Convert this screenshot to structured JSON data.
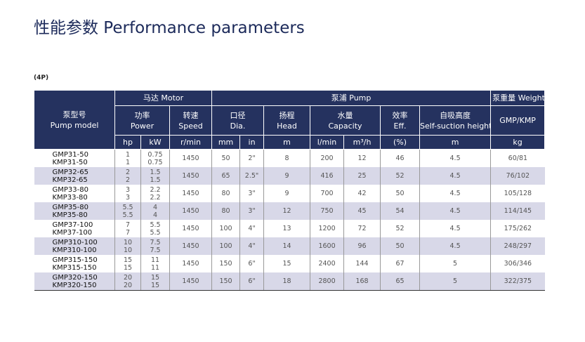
{
  "title": "性能参数 Performance parameters",
  "note": "(4P)",
  "header": {
    "model": [
      "泵型号",
      "Pump model"
    ],
    "motor": "马达 Motor",
    "pump": "泵浦 Pump",
    "weight": "泵重量 Weight",
    "groups": [
      [
        "功率",
        "Power"
      ],
      [
        "转速",
        "Speed"
      ],
      [
        "口径",
        "Dia."
      ],
      [
        "扬程",
        "Head"
      ],
      [
        "水量",
        "Capacity"
      ],
      [
        "效率",
        "Eff."
      ],
      [
        "自吸高度",
        "Self-suction height"
      ],
      [
        "GMP/KMP"
      ]
    ],
    "units": [
      "hp",
      "kW",
      "r/min",
      "mm",
      "in",
      "m",
      "l/min",
      "m³/h",
      "(%)",
      "m",
      "kg"
    ]
  },
  "rows": [
    {
      "models": [
        "GMP31-50",
        "KMP31-50"
      ],
      "hp": [
        "1",
        "1"
      ],
      "kw": [
        "0.75",
        "0.75"
      ],
      "cells": [
        "1450",
        "50",
        "2\"",
        "8",
        "200",
        "12",
        "46",
        "4.5",
        "60/81"
      ]
    },
    {
      "models": [
        "GMP32-65",
        "KMP32-65"
      ],
      "hp": [
        "2",
        "2"
      ],
      "kw": [
        "1.5",
        "1.5"
      ],
      "cells": [
        "1450",
        "65",
        "2.5\"",
        "9",
        "416",
        "25",
        "52",
        "4.5",
        "76/102"
      ]
    },
    {
      "models": [
        "GMP33-80",
        "KMP33-80"
      ],
      "hp": [
        "3",
        "3"
      ],
      "kw": [
        "2.2",
        "2.2"
      ],
      "cells": [
        "1450",
        "80",
        "3\"",
        "9",
        "700",
        "42",
        "50",
        "4.5",
        "105/128"
      ]
    },
    {
      "models": [
        "GMP35-80",
        "KMP35-80"
      ],
      "hp": [
        "5.5",
        "5.5"
      ],
      "kw": [
        "4",
        "4"
      ],
      "cells": [
        "1450",
        "80",
        "3\"",
        "12",
        "750",
        "45",
        "54",
        "4.5",
        "114/145"
      ]
    },
    {
      "models": [
        "GMP37-100",
        "KMP37-100"
      ],
      "hp": [
        "7",
        "7"
      ],
      "kw": [
        "5.5",
        "5.5"
      ],
      "cells": [
        "1450",
        "100",
        "4\"",
        "13",
        "1200",
        "72",
        "52",
        "4.5",
        "175/262"
      ]
    },
    {
      "models": [
        "GMP310-100",
        "KMP310-100"
      ],
      "hp": [
        "10",
        "10"
      ],
      "kw": [
        "7.5",
        "7.5"
      ],
      "cells": [
        "1450",
        "100",
        "4\"",
        "14",
        "1600",
        "96",
        "50",
        "4.5",
        "248/297"
      ]
    },
    {
      "models": [
        "GMP315-150",
        "KMP315-150"
      ],
      "hp": [
        "15",
        "15"
      ],
      "kw": [
        "11",
        "11"
      ],
      "cells": [
        "1450",
        "150",
        "6\"",
        "15",
        "2400",
        "144",
        "67",
        "5",
        "306/346"
      ]
    },
    {
      "models": [
        "GMP320-150",
        "KMP320-150"
      ],
      "hp": [
        "20",
        "20"
      ],
      "kw": [
        "15",
        "15"
      ],
      "cells": [
        "1450",
        "150",
        "6\"",
        "18",
        "2800",
        "168",
        "65",
        "5",
        "322/375"
      ]
    }
  ]
}
